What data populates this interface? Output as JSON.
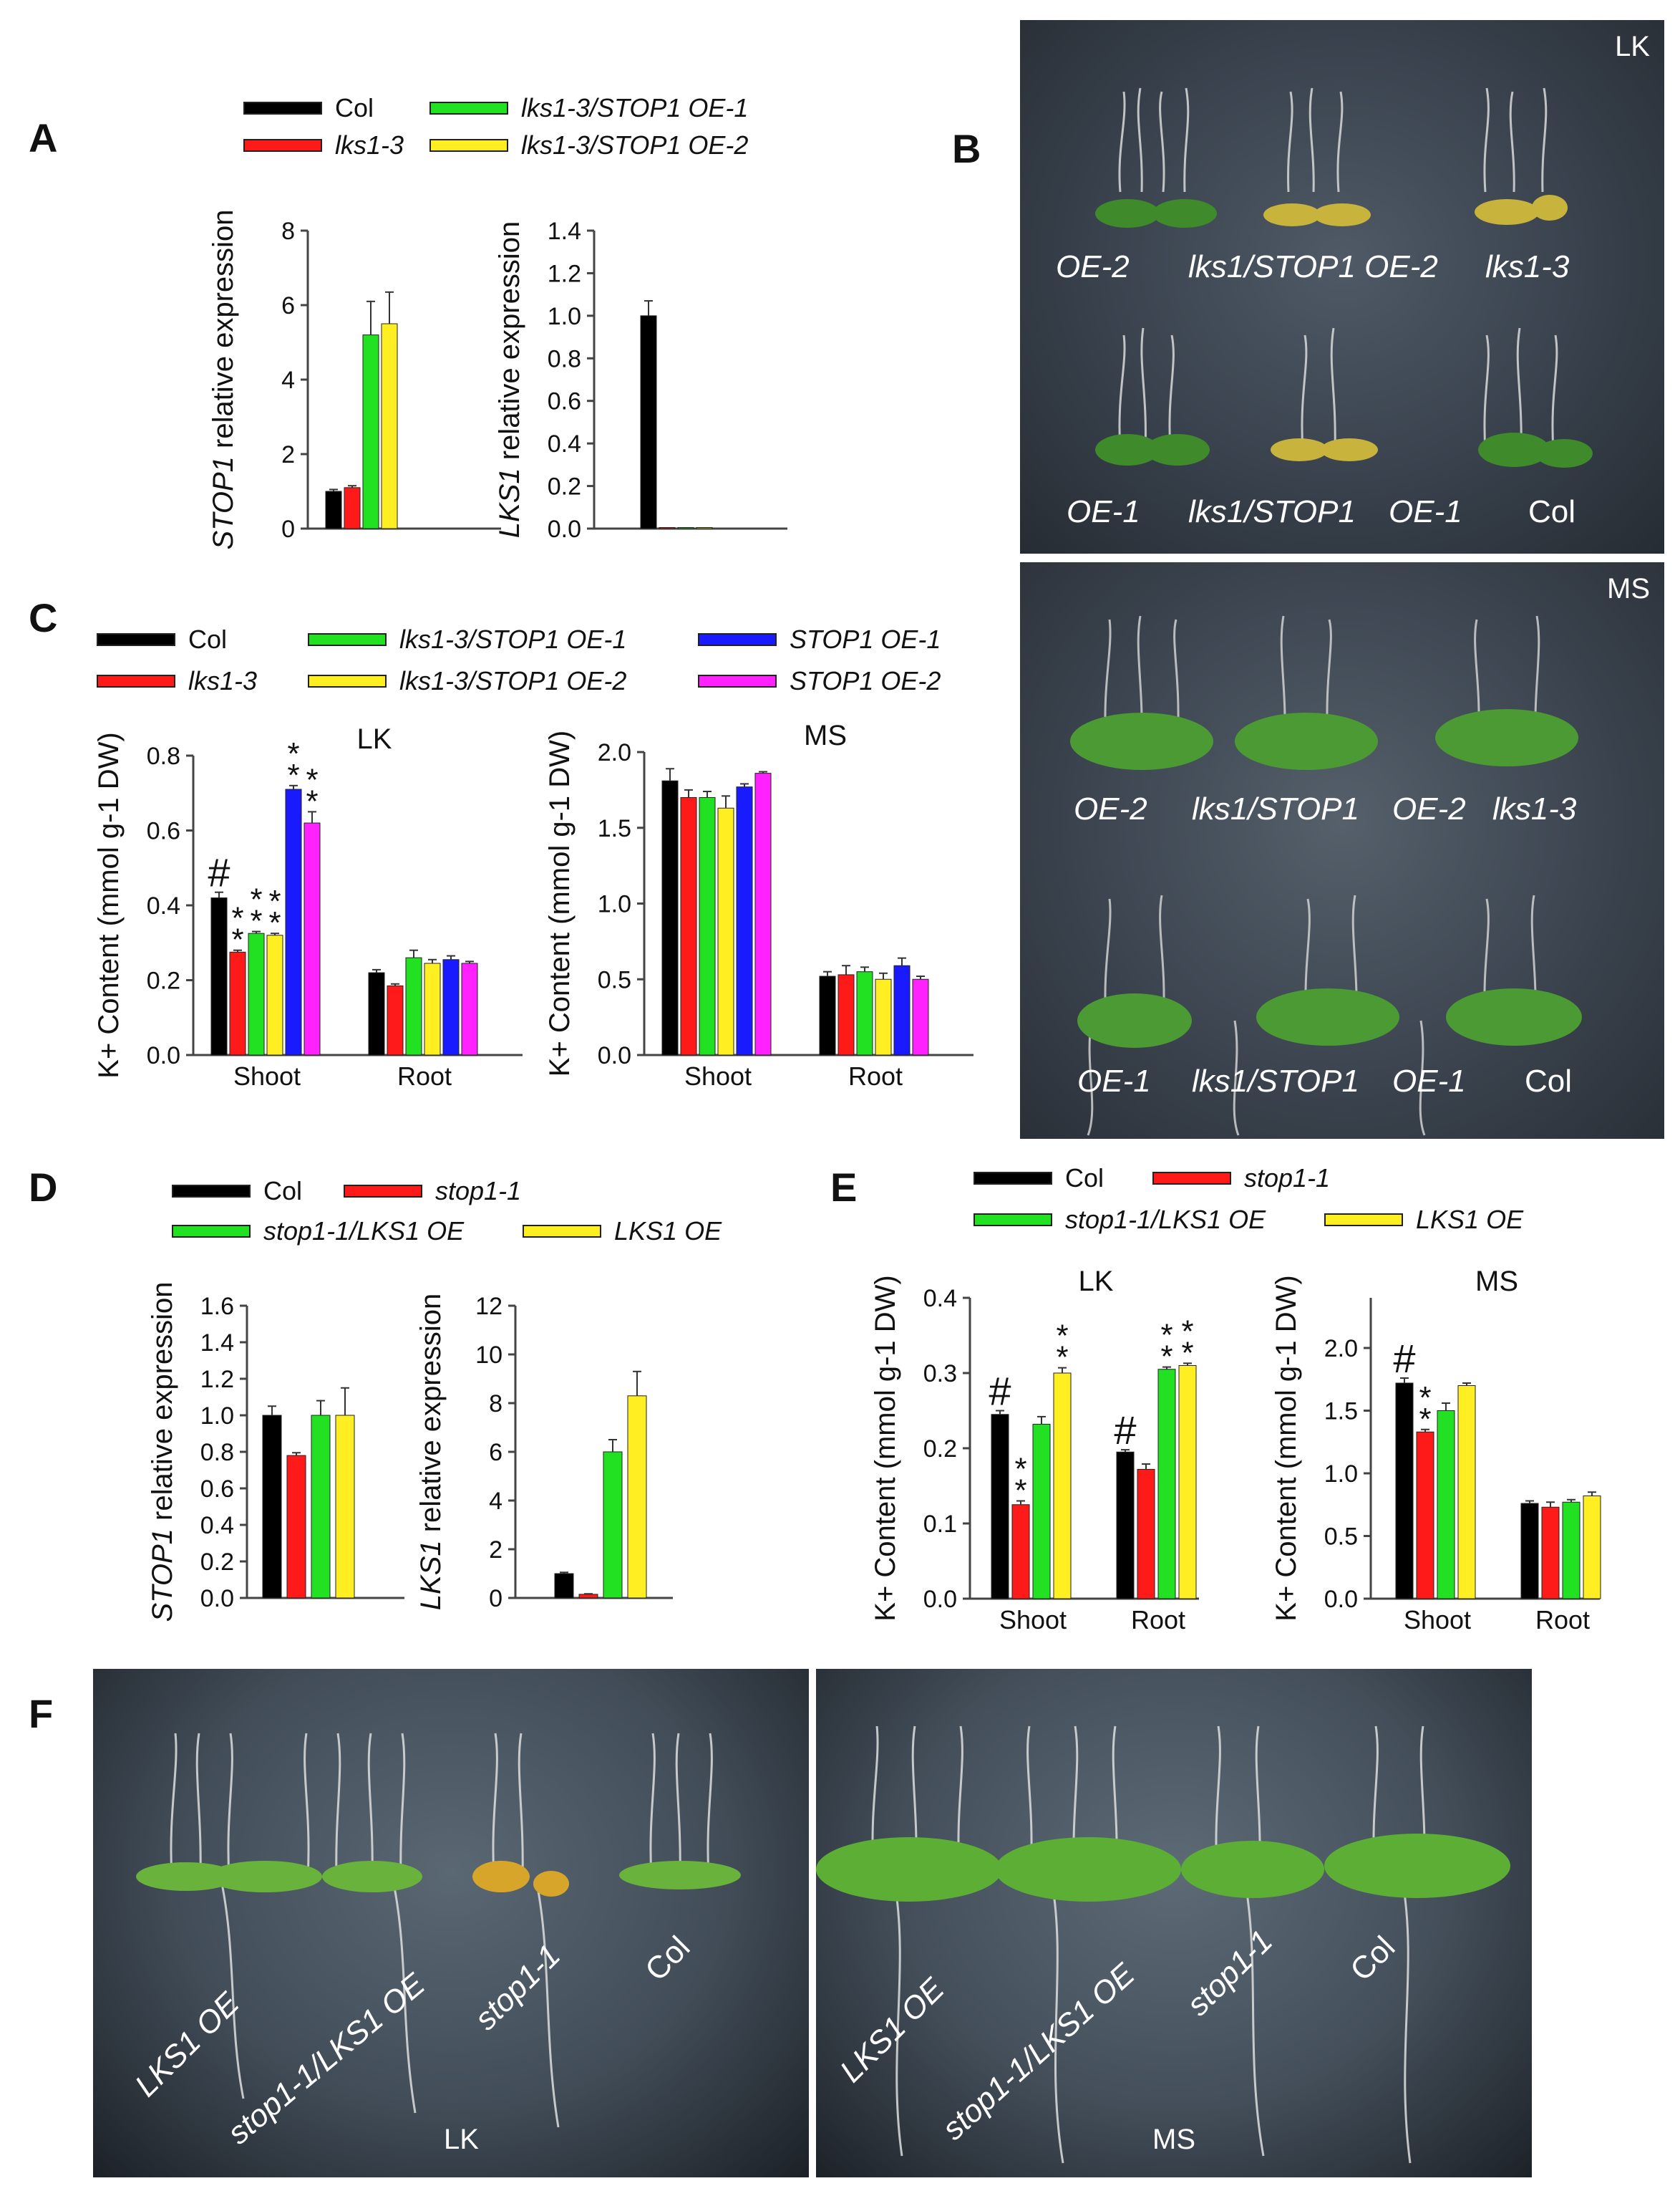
{
  "colors": {
    "Col": "#000000",
    "lks1-3": "#ff1a1a",
    "lks1-3/STOP1 OE-1": "#22e022",
    "lks1-3/STOP1 OE-2": "#ffee22",
    "STOP1 OE-1": "#1a1aff",
    "STOP1 OE-2": "#ff22ff"
  },
  "panels": {
    "A": {
      "letter": "A",
      "legend": [
        "Col",
        "lks1-3",
        "lks1-3/STOP1 OE-1",
        "lks1-3/STOP1 OE-2"
      ]
    },
    "B": {
      "letter": "B",
      "plate_lk": {
        "tag": "LK",
        "top_labels": [
          "OE-2",
          "lks1/STOP1 OE-2",
          "lks1-3"
        ],
        "bottom_labels": [
          "OE-1",
          "lks1/STOP1",
          "OE-1",
          "Col"
        ]
      },
      "plate_ms": {
        "tag": "MS",
        "top_labels": [
          "OE-2",
          "lks1/STOP1",
          "OE-2",
          "lks1-3"
        ],
        "bottom_labels": [
          "OE-1",
          "lks1/STOP1",
          "OE-1",
          "Col"
        ]
      }
    },
    "C": {
      "letter": "C",
      "legend": [
        "Col",
        "lks1-3",
        "lks1-3/STOP1 OE-1",
        "lks1-3/STOP1 OE-2",
        "STOP1 OE-1",
        "STOP1 OE-2"
      ]
    },
    "D": {
      "letter": "D",
      "legend": [
        "Col",
        "stop1-1",
        "stop1-1/LKS1 OE",
        "LKS1 OE"
      ]
    },
    "E": {
      "letter": "E",
      "legend": [
        "Col",
        "stop1-1",
        "stop1-1/LKS1 OE",
        "LKS1 OE"
      ]
    },
    "F": {
      "letter": "F",
      "plate_lk": {
        "tag": "LK",
        "labels": [
          "LKS1 OE",
          "stop1-1/LKS1 OE",
          "stop1-1",
          "Col"
        ]
      },
      "plate_ms": {
        "tag": "MS",
        "labels": [
          "LKS1 OE",
          "stop1-1/LKS1 OE",
          "stop1-1",
          "Col"
        ]
      }
    }
  },
  "chart_data": [
    {
      "id": "A1",
      "type": "bar",
      "ylabel_italic": "STOP1",
      "ylabel_rest": " relative expression",
      "ylim": [
        0,
        8
      ],
      "yticks": [
        "0",
        "2",
        "4",
        "6",
        "8"
      ],
      "ytick_values": [
        0,
        2,
        4,
        6,
        8
      ],
      "categories": [
        ""
      ],
      "series": [
        {
          "name": "Col",
          "values": [
            1.0
          ],
          "err": [
            0.05
          ]
        },
        {
          "name": "lks1-3",
          "values": [
            1.1
          ],
          "err": [
            0.05
          ]
        },
        {
          "name": "lks1-3/STOP1 OE-1",
          "values": [
            5.2
          ],
          "err": [
            0.9
          ]
        },
        {
          "name": "lks1-3/STOP1 OE-2",
          "values": [
            5.5
          ],
          "err": [
            0.85
          ]
        }
      ]
    },
    {
      "id": "A2",
      "type": "bar",
      "ylabel_italic": "LKS1",
      "ylabel_rest": " relative expression",
      "ylim": [
        0,
        1.4
      ],
      "yticks": [
        "0.0",
        "0.2",
        "0.4",
        "0.6",
        "0.8",
        "1.0",
        "1.2",
        "1.4"
      ],
      "ytick_values": [
        0,
        0.2,
        0.4,
        0.6,
        0.8,
        1.0,
        1.2,
        1.4
      ],
      "categories": [
        ""
      ],
      "series": [
        {
          "name": "Col",
          "values": [
            1.0
          ],
          "err": [
            0.07
          ]
        },
        {
          "name": "lks1-3",
          "values": [
            0.005
          ],
          "err": [
            0
          ]
        },
        {
          "name": "lks1-3/STOP1 OE-1",
          "values": [
            0.005
          ],
          "err": [
            0
          ]
        },
        {
          "name": "lks1-3/STOP1 OE-2",
          "values": [
            0.005
          ],
          "err": [
            0
          ]
        }
      ]
    },
    {
      "id": "C1",
      "type": "bar",
      "title": "LK",
      "ylabel": "K+ Content (mmol g-1 DW)",
      "ylim": [
        0,
        0.8
      ],
      "yticks": [
        "0.0",
        "0.2",
        "0.4",
        "0.6",
        "0.8"
      ],
      "ytick_values": [
        0,
        0.2,
        0.4,
        0.6,
        0.8
      ],
      "categories": [
        "Shoot",
        "Root"
      ],
      "series": [
        {
          "name": "Col",
          "values": [
            0.42,
            0.22
          ],
          "err": [
            0.015,
            0.008
          ],
          "marks": [
            "#",
            ""
          ]
        },
        {
          "name": "lks1-3",
          "values": [
            0.275,
            0.185
          ],
          "err": [
            0.005,
            0.005
          ],
          "marks": [
            "**",
            ""
          ]
        },
        {
          "name": "lks1-3/STOP1 OE-1",
          "values": [
            0.325,
            0.26
          ],
          "err": [
            0.005,
            0.02
          ],
          "marks": [
            "**",
            ""
          ]
        },
        {
          "name": "lks1-3/STOP1 OE-2",
          "values": [
            0.32,
            0.245
          ],
          "err": [
            0.005,
            0.01
          ],
          "marks": [
            "**",
            ""
          ]
        },
        {
          "name": "STOP1 OE-1",
          "values": [
            0.71,
            0.255
          ],
          "err": [
            0.01,
            0.01
          ],
          "marks": [
            "**",
            ""
          ]
        },
        {
          "name": "STOP1 OE-2",
          "values": [
            0.62,
            0.245
          ],
          "err": [
            0.03,
            0.005
          ],
          "marks": [
            "**",
            ""
          ]
        }
      ]
    },
    {
      "id": "C2",
      "type": "bar",
      "title": "MS",
      "ylabel": "K+ Content (mmol g-1 DW)",
      "ylim": [
        0,
        2.0
      ],
      "yticks": [
        "0.0",
        "0.5",
        "1.0",
        "1.5",
        "2.0"
      ],
      "ytick_values": [
        0,
        0.5,
        1.0,
        1.5,
        2.0
      ],
      "categories": [
        "Shoot",
        "Root"
      ],
      "series": [
        {
          "name": "Col",
          "values": [
            1.81,
            0.52
          ],
          "err": [
            0.08,
            0.03
          ]
        },
        {
          "name": "lks1-3",
          "values": [
            1.7,
            0.53
          ],
          "err": [
            0.05,
            0.06
          ]
        },
        {
          "name": "lks1-3/STOP1 OE-1",
          "values": [
            1.7,
            0.55
          ],
          "err": [
            0.04,
            0.03
          ]
        },
        {
          "name": "lks1-3/STOP1 OE-2",
          "values": [
            1.63,
            0.5
          ],
          "err": [
            0.08,
            0.04
          ]
        },
        {
          "name": "STOP1 OE-1",
          "values": [
            1.77,
            0.59
          ],
          "err": [
            0.02,
            0.05
          ]
        },
        {
          "name": "STOP1 OE-2",
          "values": [
            1.86,
            0.5
          ],
          "err": [
            0.01,
            0.02
          ]
        }
      ]
    },
    {
      "id": "D1",
      "type": "bar",
      "ylabel_italic": "STOP1",
      "ylabel_rest": " relative expression",
      "ylim": [
        0,
        1.6
      ],
      "yticks": [
        "0.0",
        "0.2",
        "0.4",
        "0.6",
        "0.8",
        "1.0",
        "1.2",
        "1.4",
        "1.6"
      ],
      "ytick_values": [
        0,
        0.2,
        0.4,
        0.6,
        0.8,
        1.0,
        1.2,
        1.4,
        1.6
      ],
      "categories": [
        ""
      ],
      "series": [
        {
          "name": "Col",
          "values": [
            1.0
          ],
          "err": [
            0.05
          ]
        },
        {
          "name": "stop1-1",
          "values": [
            0.78
          ],
          "err": [
            0.015
          ]
        },
        {
          "name": "stop1-1/LKS1 OE",
          "values": [
            1.0
          ],
          "err": [
            0.08
          ]
        },
        {
          "name": "LKS1 OE",
          "values": [
            1.0
          ],
          "err": [
            0.15
          ]
        }
      ]
    },
    {
      "id": "D2",
      "type": "bar",
      "ylabel_italic": "LKS1",
      "ylabel_rest": " relative expression",
      "ylim": [
        0,
        12
      ],
      "yticks": [
        "0",
        "2",
        "4",
        "6",
        "8",
        "10",
        "12"
      ],
      "ytick_values": [
        0,
        2,
        4,
        6,
        8,
        10,
        12
      ],
      "categories": [
        ""
      ],
      "series": [
        {
          "name": "Col",
          "values": [
            1.0
          ],
          "err": [
            0.05
          ]
        },
        {
          "name": "stop1-1",
          "values": [
            0.15
          ],
          "err": [
            0.02
          ]
        },
        {
          "name": "stop1-1/LKS1 OE",
          "values": [
            6.0
          ],
          "err": [
            0.5
          ]
        },
        {
          "name": "LKS1 OE",
          "values": [
            8.3
          ],
          "err": [
            1.0
          ]
        }
      ]
    },
    {
      "id": "E1",
      "type": "bar",
      "title": "LK",
      "ylabel": "K+ Content (mmol g-1 DW)",
      "ylim": [
        0,
        0.4
      ],
      "yticks": [
        "0.0",
        "0.1",
        "0.2",
        "0.3",
        "0.4"
      ],
      "ytick_values": [
        0,
        0.1,
        0.2,
        0.3,
        0.4
      ],
      "categories": [
        "Shoot",
        "Root"
      ],
      "series": [
        {
          "name": "Col",
          "values": [
            0.245,
            0.195
          ],
          "err": [
            0.005,
            0.003
          ],
          "marks": [
            "#",
            "#"
          ]
        },
        {
          "name": "stop1-1",
          "values": [
            0.125,
            0.172
          ],
          "err": [
            0.005,
            0.007
          ],
          "marks": [
            "**",
            ""
          ]
        },
        {
          "name": "stop1-1/LKS1 OE",
          "values": [
            0.232,
            0.305
          ],
          "err": [
            0.01,
            0.003
          ],
          "marks": [
            "",
            "**"
          ]
        },
        {
          "name": "LKS1 OE",
          "values": [
            0.3,
            0.31
          ],
          "err": [
            0.007,
            0.003
          ],
          "marks": [
            "**",
            "**"
          ]
        }
      ]
    },
    {
      "id": "E2",
      "type": "bar",
      "title": "MS",
      "ylabel": "K+ Content (mmol g-1 DW)",
      "ylim": [
        0,
        2.4
      ],
      "yticks": [
        "0.0",
        "0.5",
        "1.0",
        "1.5",
        "2.0"
      ],
      "ytick_values": [
        0,
        0.5,
        1.0,
        1.5,
        2.0
      ],
      "categories": [
        "Shoot",
        "Root"
      ],
      "series": [
        {
          "name": "Col",
          "values": [
            1.72,
            0.76
          ],
          "err": [
            0.04,
            0.02
          ],
          "marks": [
            "#",
            ""
          ]
        },
        {
          "name": "stop1-1",
          "values": [
            1.33,
            0.73
          ],
          "err": [
            0.02,
            0.04
          ],
          "marks": [
            "**",
            ""
          ]
        },
        {
          "name": "stop1-1/LKS1 OE",
          "values": [
            1.5,
            0.77
          ],
          "err": [
            0.06,
            0.02
          ]
        },
        {
          "name": "LKS1 OE",
          "values": [
            1.7,
            0.82
          ],
          "err": [
            0.02,
            0.03
          ]
        }
      ]
    }
  ]
}
